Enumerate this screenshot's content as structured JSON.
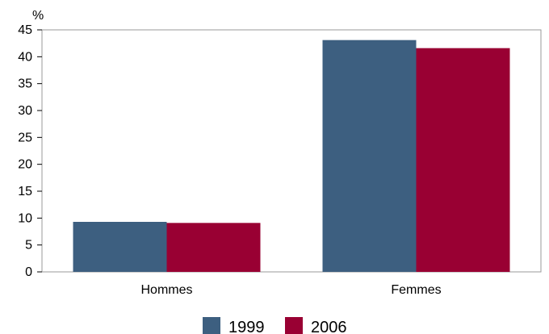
{
  "chart_data": {
    "type": "bar",
    "title": "",
    "xlabel": "",
    "ylabel": "%",
    "ylim": [
      0,
      45
    ],
    "yticks": [
      0,
      5,
      10,
      15,
      20,
      25,
      30,
      35,
      40,
      45
    ],
    "categories": [
      "Hommes",
      "Femmes"
    ],
    "series": [
      {
        "name": "1999",
        "color": "#3d5f80",
        "values": [
          9.3,
          43.1
        ]
      },
      {
        "name": "2006",
        "color": "#990033",
        "values": [
          9.1,
          41.6
        ]
      }
    ],
    "grid": false,
    "legend_position": "bottom"
  }
}
